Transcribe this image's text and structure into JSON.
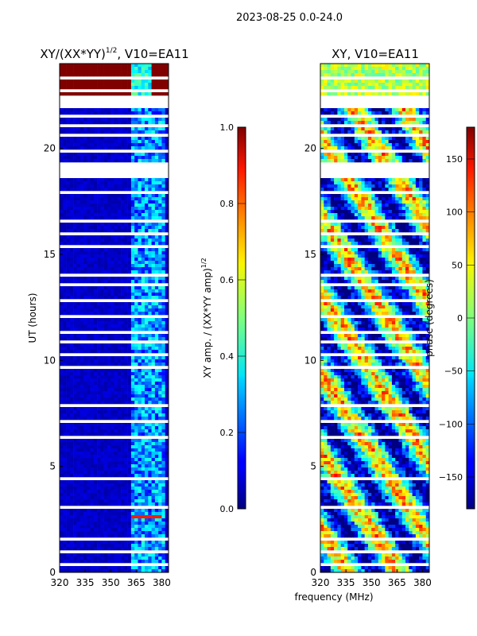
{
  "figure": {
    "suptitle": "2023-08-25 0.0-24.0",
    "xlabel_shared": "frequency (MHz)"
  },
  "chart_data": [
    {
      "type": "heatmap",
      "title_main": "XY/(XX*YY)",
      "title_sup": "1/2",
      "title_tail": ", V10=EA11",
      "ylabel": "UT (hours)",
      "xlim": [
        320,
        384
      ],
      "ylim": [
        0,
        24
      ],
      "xticks": [
        320,
        335,
        350,
        365,
        380
      ],
      "yticks": [
        0,
        5,
        10,
        15,
        20
      ],
      "colormap": "jet",
      "colorbar": {
        "label_main": "XY amp. / (XX*YY amp)",
        "label_sup": "1/2",
        "range": [
          0.0,
          1.0
        ],
        "ticks": [
          "0.0",
          "0.2",
          "0.4",
          "0.6",
          "0.8",
          "1.0"
        ]
      }
    },
    {
      "type": "heatmap",
      "title": "XY, V10=EA11",
      "xlim": [
        320,
        384
      ],
      "ylim": [
        0,
        24
      ],
      "xticks": [
        320,
        335,
        350,
        365,
        380
      ],
      "yticks": [
        0,
        5,
        10,
        15,
        20
      ],
      "colormap": "jet",
      "colorbar": {
        "label": "phase (degrees)",
        "range": [
          -180,
          180
        ],
        "ticks": [
          "150",
          "100",
          "50",
          "0",
          "−50",
          "−100",
          "−150"
        ],
        "tick_values": [
          150,
          100,
          50,
          0,
          -50,
          -100,
          -150
        ]
      }
    }
  ]
}
